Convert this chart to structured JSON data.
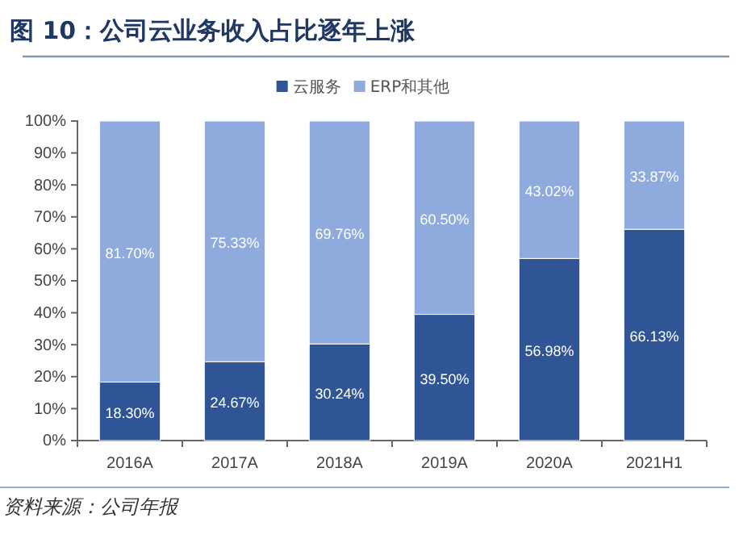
{
  "chart_data": {
    "type": "bar",
    "stacked": true,
    "title": "图 10：公司云业务收入占比逐年上涨",
    "categories": [
      "2016A",
      "2017A",
      "2018A",
      "2019A",
      "2020A",
      "2021H1"
    ],
    "series": [
      {
        "name": "云服务",
        "color": "#2f5597",
        "values": [
          18.3,
          24.67,
          30.24,
          39.5,
          56.98,
          66.13
        ],
        "value_labels": [
          "18.30%",
          "24.67%",
          "30.24%",
          "39.50%",
          "56.98%",
          "66.13%"
        ]
      },
      {
        "name": "ERP和其他",
        "color": "#8faadc",
        "values": [
          81.7,
          75.33,
          69.76,
          60.5,
          43.02,
          33.87
        ],
        "value_labels": [
          "81.70%",
          "75.33%",
          "69.76%",
          "60.50%",
          "43.02%",
          "33.87%"
        ]
      }
    ],
    "ylim": [
      0,
      100
    ],
    "yticks": [
      {
        "value": 0,
        "label": "0%"
      },
      {
        "value": 10,
        "label": "10%"
      },
      {
        "value": 20,
        "label": "20%"
      },
      {
        "value": 30,
        "label": "30%"
      },
      {
        "value": 40,
        "label": "40%"
      },
      {
        "value": 50,
        "label": "50%"
      },
      {
        "value": 60,
        "label": "60%"
      },
      {
        "value": 70,
        "label": "70%"
      },
      {
        "value": 80,
        "label": "80%"
      },
      {
        "value": 90,
        "label": "90%"
      },
      {
        "value": 100,
        "label": "100%"
      }
    ],
    "legend": "top",
    "grid": false,
    "annotations": [
      "资料来源：公司年报"
    ]
  }
}
